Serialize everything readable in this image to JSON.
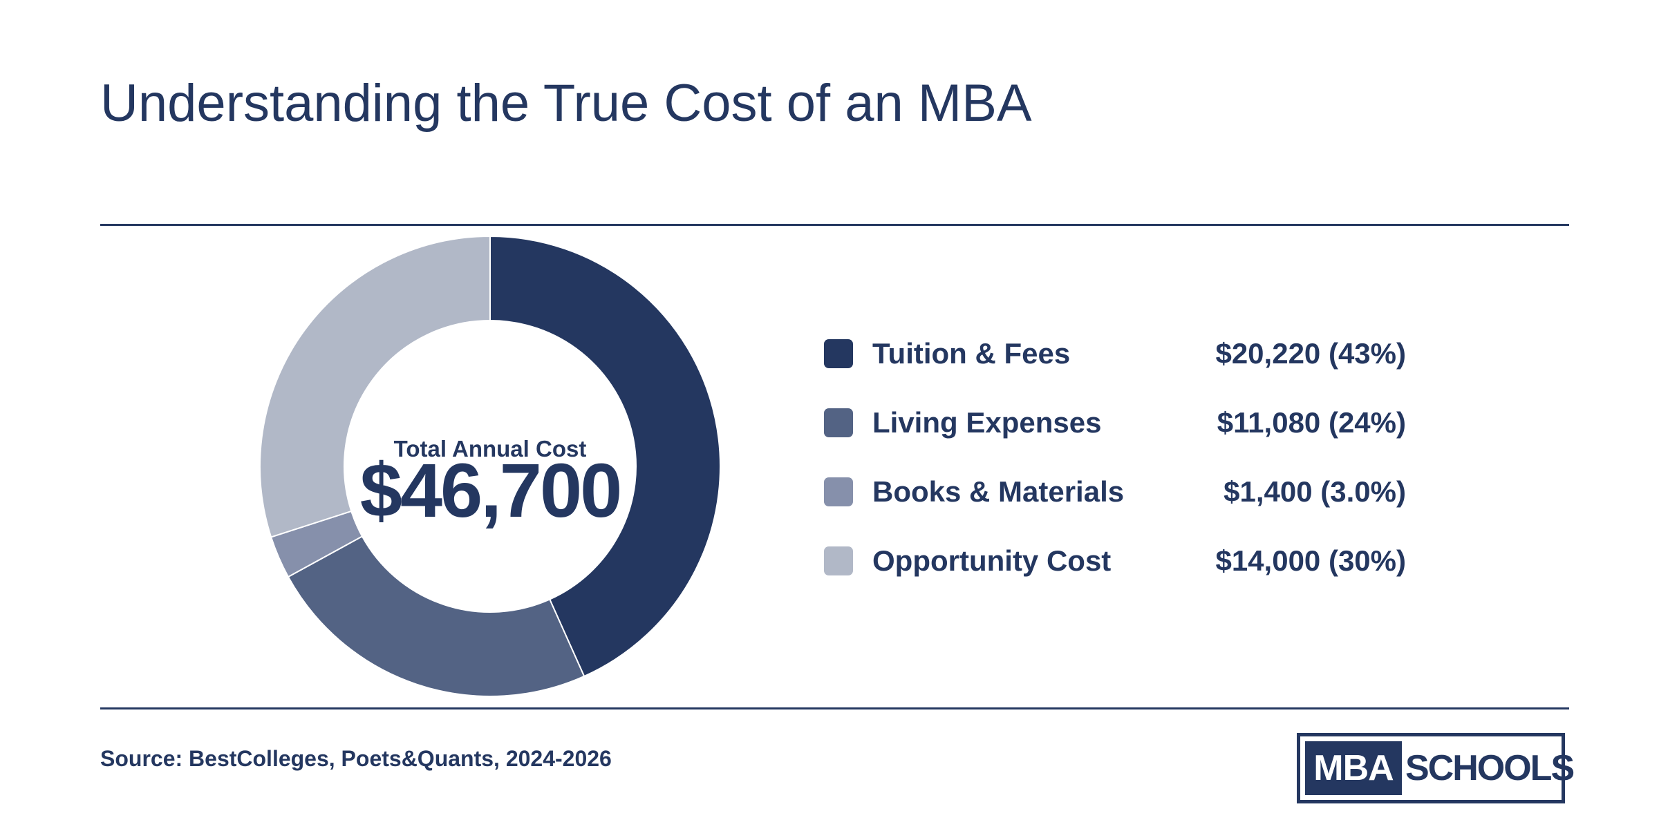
{
  "title": "Understanding the True Cost of an MBA",
  "source": "Source: BestColleges, Poets&Quants, 2024-2026",
  "logo": {
    "part1": "MBA",
    "part2": "SCHOOLS"
  },
  "colors": {
    "primary": "#243760"
  },
  "chart_data": {
    "type": "pie",
    "variant": "donut",
    "center_label": "Total Annual Cost",
    "center_value": "$46,700",
    "total": 46700,
    "categories": [
      "Tuition & Fees",
      "Living Expenses",
      "Books & Materials",
      "Opportunity Cost"
    ],
    "values": [
      20220,
      11080,
      1400,
      14000
    ],
    "legend_placement": "right",
    "slices": [
      {
        "label": "Tuition & Fees",
        "value": 20220,
        "value_text": "$20,220 (43%)",
        "color": "#243760"
      },
      {
        "label": "Living Expenses",
        "value": 11080,
        "value_text": "$11,080 (24%)",
        "color": "#536384"
      },
      {
        "label": "Books & Materials",
        "value": 1400,
        "value_text": "$1,400 (3.0%)",
        "color": "#8690ab"
      },
      {
        "label": "Opportunity Cost",
        "value": 14000,
        "value_text": "$14,000 (30%)",
        "color": "#b1b8c7"
      }
    ]
  }
}
